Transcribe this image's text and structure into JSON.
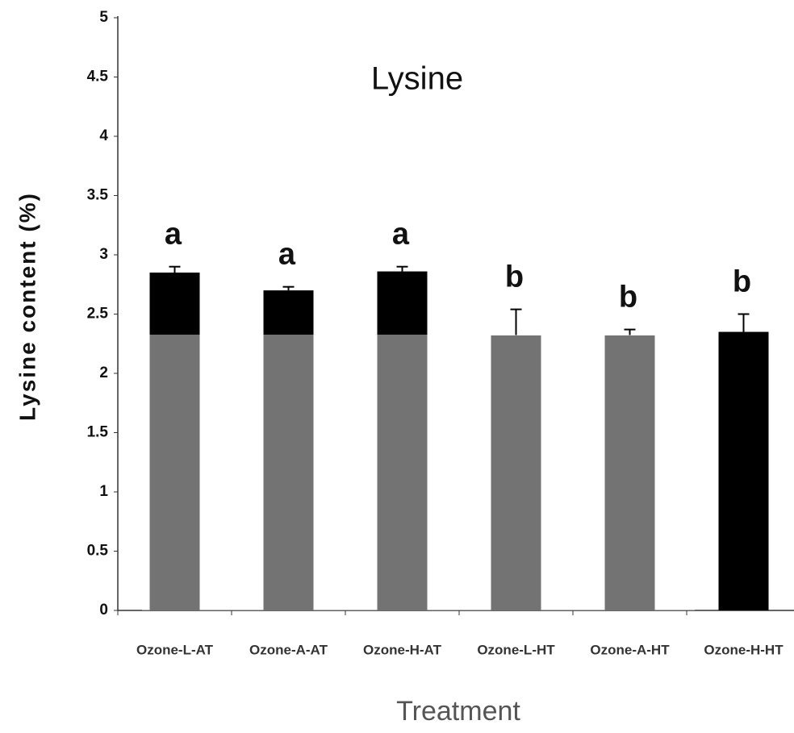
{
  "chart_data": {
    "type": "bar",
    "title": "Lysine",
    "x_label": "Treatment",
    "y_label": "Lysine content (%)",
    "categories": [
      "Ozone-L-AT",
      "Ozone-A-AT",
      "Ozone-H-AT",
      "Ozone-L-HT",
      "Ozone-A-HT",
      "Ozone-H-HT"
    ],
    "values": [
      2.85,
      2.7,
      2.86,
      2.32,
      2.32,
      2.35
    ],
    "errors": [
      0.05,
      0.03,
      0.04,
      0.22,
      0.05,
      0.15
    ],
    "significance_letters": [
      "a",
      "a",
      "a",
      "b",
      "b",
      "b"
    ],
    "color": "#000000",
    "ylim": [
      0,
      5
    ],
    "yticks": [
      0,
      0.5,
      1,
      1.5,
      2,
      2.5,
      3,
      3.5,
      4,
      4.5,
      5
    ],
    "grid": false
  }
}
